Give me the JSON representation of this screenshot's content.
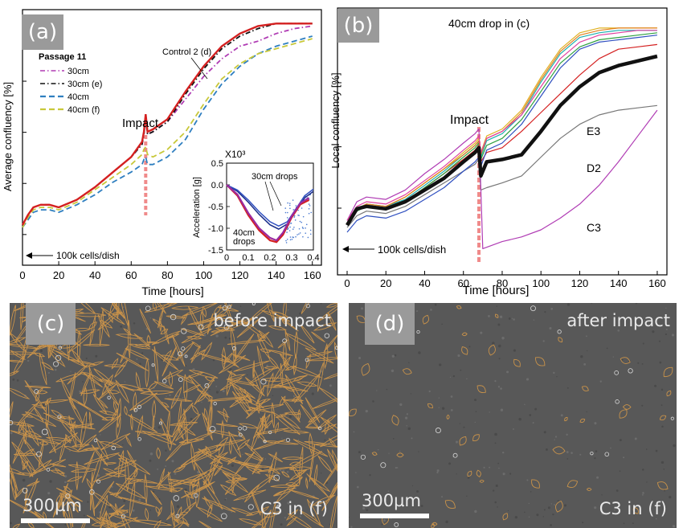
{
  "panels": {
    "a": {
      "tag": "(a)",
      "legend_title": "Passage 11",
      "control_label": "Control 2 (d)",
      "impact_label": "Impact",
      "start_label": "100k cells/dish",
      "inset": {
        "exp_label": "X10³",
        "ylabel": "Acceleration [g]",
        "label_30": "30cm drops",
        "label_40_line1": "40cm",
        "label_40_line2": "drops"
      }
    },
    "b": {
      "tag": "(b)",
      "title": "40cm drop in (c)",
      "impact_label": "Impact",
      "start_label": "100k cells/dish",
      "labels": {
        "e3": "E3",
        "d2": "D2",
        "c3": "C3"
      }
    },
    "c": {
      "tag": "(c)",
      "caption": "before impact",
      "scale": "300µm",
      "sample": "C3 in (f)"
    },
    "d": {
      "tag": "(d)",
      "caption": "after impact",
      "scale": "300µm",
      "sample": "C3 in (f)"
    }
  },
  "colors": {
    "red": "#d42020",
    "black": "#111111",
    "blue": "#2f7fc0",
    "yellow": "#c8c83a",
    "magenta": "#b03cb4",
    "impact": "#f08a8a",
    "outline": "#c8924a",
    "bg_micro": "#585858"
  },
  "chart_data": [
    {
      "id": "a",
      "type": "line",
      "xlabel": "Time [hours]",
      "ylabel": "Average confluency [%]",
      "xlim": [
        0,
        165
      ],
      "xticks": [
        0,
        20,
        40,
        60,
        80,
        100,
        120,
        140,
        160
      ],
      "impact_x": 68,
      "grid": false,
      "legend_position": "top-left",
      "series": [
        {
          "name": "30cm",
          "color": "#b03cb4",
          "style": "dashdot",
          "x": [
            0,
            3,
            6,
            10,
            15,
            20,
            30,
            40,
            50,
            60,
            66,
            67,
            68,
            69,
            72,
            80,
            90,
            100,
            110,
            120,
            130,
            140,
            150,
            160
          ],
          "y": [
            0.16,
            0.2,
            0.23,
            0.24,
            0.24,
            0.23,
            0.26,
            0.31,
            0.37,
            0.43,
            0.48,
            0.52,
            0.58,
            0.52,
            0.53,
            0.57,
            0.66,
            0.75,
            0.82,
            0.87,
            0.89,
            0.92,
            0.94,
            0.95
          ]
        },
        {
          "name": "30cm (e)",
          "color": "#111111",
          "style": "dashdot",
          "x": [
            0,
            3,
            6,
            10,
            15,
            20,
            30,
            40,
            50,
            60,
            66,
            67,
            68,
            69,
            72,
            80,
            90,
            100,
            110,
            120,
            130,
            140,
            150,
            160
          ],
          "y": [
            0.16,
            0.2,
            0.23,
            0.24,
            0.24,
            0.23,
            0.26,
            0.31,
            0.37,
            0.43,
            0.48,
            0.52,
            0.58,
            0.52,
            0.53,
            0.57,
            0.68,
            0.78,
            0.86,
            0.91,
            0.94,
            0.96,
            0.96,
            0.96
          ]
        },
        {
          "name": "40cm",
          "color": "#2f7fc0",
          "style": "dashed",
          "x": [
            0,
            3,
            6,
            10,
            15,
            20,
            30,
            40,
            50,
            60,
            66,
            67,
            68,
            69,
            72,
            80,
            90,
            100,
            110,
            120,
            130,
            140,
            150,
            160
          ],
          "y": [
            0.15,
            0.18,
            0.21,
            0.22,
            0.22,
            0.21,
            0.24,
            0.28,
            0.33,
            0.37,
            0.4,
            0.42,
            0.43,
            0.4,
            0.4,
            0.43,
            0.5,
            0.62,
            0.72,
            0.79,
            0.84,
            0.87,
            0.89,
            0.91
          ]
        },
        {
          "name": "40cm (f)",
          "color": "#c8c83a",
          "style": "dashed",
          "x": [
            0,
            3,
            6,
            10,
            15,
            20,
            30,
            40,
            50,
            60,
            66,
            67,
            68,
            69,
            72,
            80,
            90,
            100,
            110,
            120,
            130,
            140,
            150,
            160
          ],
          "y": [
            0.15,
            0.19,
            0.22,
            0.23,
            0.23,
            0.22,
            0.25,
            0.3,
            0.35,
            0.4,
            0.44,
            0.46,
            0.47,
            0.44,
            0.43,
            0.46,
            0.53,
            0.64,
            0.74,
            0.8,
            0.84,
            0.86,
            0.88,
            0.9
          ]
        },
        {
          "name": "Control 2 (d)",
          "color": "#d42020",
          "style": "solid",
          "x": [
            0,
            3,
            6,
            10,
            15,
            20,
            30,
            40,
            50,
            60,
            66,
            67,
            68,
            69,
            72,
            80,
            90,
            100,
            110,
            120,
            130,
            140,
            150,
            160
          ],
          "y": [
            0.16,
            0.2,
            0.23,
            0.24,
            0.24,
            0.23,
            0.26,
            0.31,
            0.37,
            0.43,
            0.49,
            0.53,
            0.6,
            0.53,
            0.54,
            0.58,
            0.69,
            0.79,
            0.87,
            0.92,
            0.95,
            0.96,
            0.96,
            0.96
          ]
        }
      ]
    },
    {
      "id": "a-inset",
      "type": "line",
      "ylabel": "Acceleration [g]",
      "xlim": [
        0,
        0.4
      ],
      "ylim": [
        -1.5,
        0.5
      ],
      "xticks": [
        "0",
        "0.1",
        "0.2",
        "0.3",
        "0.4"
      ],
      "yticks": [
        "0.5",
        "0.0",
        "-0.5",
        "-1.0",
        "-1.5"
      ],
      "series": [
        {
          "color": "#1a2e8a",
          "x": [
            0,
            0.05,
            0.1,
            0.15,
            0.2,
            0.24,
            0.28,
            0.32,
            0.36,
            0.4
          ],
          "y": [
            0.0,
            -0.15,
            -0.4,
            -0.68,
            -0.92,
            -1.02,
            -0.9,
            -0.6,
            -0.3,
            -0.15
          ]
        },
        {
          "color": "#3050c0",
          "x": [
            0,
            0.05,
            0.1,
            0.15,
            0.2,
            0.24,
            0.28,
            0.32,
            0.36,
            0.4
          ],
          "y": [
            0.0,
            -0.12,
            -0.35,
            -0.62,
            -0.85,
            -0.95,
            -0.85,
            -0.55,
            -0.25,
            -0.1
          ]
        },
        {
          "color": "#d42020",
          "x": [
            0,
            0.05,
            0.1,
            0.15,
            0.2,
            0.23,
            0.26,
            0.3,
            0.34,
            0.38
          ],
          "y": [
            0.0,
            -0.25,
            -0.7,
            -1.05,
            -1.28,
            -1.32,
            -1.15,
            -0.75,
            -0.45,
            -0.35
          ]
        },
        {
          "color": "#9a2aa0",
          "x": [
            0,
            0.05,
            0.1,
            0.15,
            0.2,
            0.23,
            0.26,
            0.3,
            0.34,
            0.38
          ],
          "y": [
            0.0,
            -0.22,
            -0.65,
            -1.0,
            -1.22,
            -1.28,
            -1.1,
            -0.72,
            -0.42,
            -0.3
          ]
        }
      ]
    },
    {
      "id": "b",
      "type": "line",
      "xlabel": "Time [hours]",
      "ylabel": "Local confluency [%]",
      "xlim": [
        0,
        165
      ],
      "xticks": [
        0,
        20,
        40,
        60,
        80,
        100,
        120,
        140,
        160
      ],
      "impact_x": 68,
      "series": [
        {
          "name": "",
          "color": "#111111",
          "bold": true,
          "x": [
            0,
            5,
            10,
            20,
            30,
            40,
            50,
            60,
            66,
            68,
            69,
            72,
            80,
            90,
            100,
            110,
            120,
            130,
            140,
            150,
            160
          ],
          "y": [
            0.15,
            0.22,
            0.23,
            0.22,
            0.25,
            0.3,
            0.35,
            0.42,
            0.46,
            0.48,
            0.36,
            0.42,
            0.43,
            0.45,
            0.55,
            0.66,
            0.74,
            0.8,
            0.83,
            0.85,
            0.87
          ]
        },
        {
          "name": "E3",
          "color": "#d42020",
          "x": [
            0,
            5,
            10,
            20,
            30,
            40,
            50,
            60,
            66,
            68,
            69,
            72,
            80,
            90,
            100,
            110,
            120,
            130,
            140,
            150,
            160
          ],
          "y": [
            0.16,
            0.22,
            0.23,
            0.22,
            0.25,
            0.31,
            0.37,
            0.43,
            0.47,
            0.49,
            0.42,
            0.46,
            0.48,
            0.55,
            0.63,
            0.71,
            0.79,
            0.86,
            0.9,
            0.91,
            0.92
          ]
        },
        {
          "name": "D2",
          "color": "#777777",
          "x": [
            0,
            5,
            10,
            20,
            30,
            40,
            50,
            60,
            66,
            68,
            69,
            72,
            80,
            90,
            100,
            110,
            120,
            130,
            140,
            150,
            160
          ],
          "y": [
            0.14,
            0.19,
            0.21,
            0.2,
            0.23,
            0.28,
            0.33,
            0.38,
            0.41,
            0.43,
            0.3,
            0.31,
            0.33,
            0.36,
            0.44,
            0.52,
            0.58,
            0.62,
            0.64,
            0.65,
            0.66
          ]
        },
        {
          "name": "C3",
          "color": "#b03cb4",
          "x": [
            0,
            5,
            10,
            20,
            30,
            40,
            50,
            60,
            66,
            68,
            70,
            80,
            90,
            100,
            110,
            120,
            130,
            140,
            150,
            160
          ],
          "y": [
            0.17,
            0.25,
            0.27,
            0.26,
            0.3,
            0.37,
            0.43,
            0.5,
            0.54,
            0.56,
            0.05,
            0.08,
            0.1,
            0.13,
            0.18,
            0.24,
            0.32,
            0.42,
            0.53,
            0.64
          ]
        },
        {
          "name": "",
          "color": "#e0b020",
          "x": [
            0,
            5,
            10,
            20,
            30,
            40,
            50,
            60,
            66,
            68,
            69,
            72,
            80,
            90,
            100,
            110,
            120,
            130,
            140,
            150,
            160
          ],
          "y": [
            0.16,
            0.22,
            0.24,
            0.23,
            0.27,
            0.33,
            0.39,
            0.46,
            0.5,
            0.52,
            0.46,
            0.53,
            0.56,
            0.64,
            0.78,
            0.9,
            0.97,
            0.99,
            0.99,
            0.99,
            0.99
          ]
        },
        {
          "name": "",
          "color": "#20b0b0",
          "x": [
            0,
            5,
            10,
            20,
            30,
            40,
            50,
            60,
            66,
            68,
            69,
            72,
            80,
            90,
            100,
            110,
            120,
            130,
            140,
            150,
            160
          ],
          "y": [
            0.16,
            0.22,
            0.24,
            0.23,
            0.26,
            0.32,
            0.38,
            0.45,
            0.49,
            0.51,
            0.44,
            0.51,
            0.54,
            0.62,
            0.76,
            0.88,
            0.95,
            0.97,
            0.98,
            0.98,
            0.98
          ]
        },
        {
          "name": "",
          "color": "#30a040",
          "x": [
            0,
            5,
            10,
            20,
            30,
            40,
            50,
            60,
            66,
            68,
            69,
            72,
            80,
            90,
            100,
            110,
            120,
            130,
            140,
            150,
            160
          ],
          "y": [
            0.15,
            0.21,
            0.23,
            0.22,
            0.25,
            0.31,
            0.37,
            0.44,
            0.48,
            0.5,
            0.43,
            0.49,
            0.52,
            0.6,
            0.72,
            0.84,
            0.91,
            0.94,
            0.95,
            0.96,
            0.97
          ]
        },
        {
          "name": "",
          "color": "#3050c0",
          "x": [
            0,
            5,
            10,
            20,
            30,
            40,
            50,
            60,
            66,
            68,
            69,
            72,
            80,
            90,
            100,
            110,
            120,
            130,
            140,
            150,
            160
          ],
          "y": [
            0.12,
            0.17,
            0.19,
            0.18,
            0.21,
            0.26,
            0.31,
            0.38,
            0.42,
            0.44,
            0.4,
            0.47,
            0.5,
            0.58,
            0.7,
            0.82,
            0.9,
            0.93,
            0.94,
            0.95,
            0.96
          ]
        },
        {
          "name": "",
          "color": "#e08020",
          "x": [
            0,
            5,
            10,
            20,
            30,
            40,
            50,
            60,
            66,
            68,
            69,
            72,
            80,
            90,
            100,
            110,
            120,
            130,
            140,
            150,
            160
          ],
          "y": [
            0.16,
            0.22,
            0.24,
            0.23,
            0.27,
            0.33,
            0.39,
            0.45,
            0.49,
            0.51,
            0.45,
            0.52,
            0.55,
            0.63,
            0.77,
            0.89,
            0.96,
            0.98,
            0.99,
            0.99,
            0.99
          ]
        },
        {
          "name": "",
          "color": "#e040a0",
          "x": [
            0,
            5,
            10,
            20,
            30,
            40,
            50,
            60,
            66,
            68,
            69,
            72,
            80,
            90,
            100,
            110,
            120,
            130,
            140,
            150,
            160
          ],
          "y": [
            0.17,
            0.23,
            0.25,
            0.24,
            0.28,
            0.34,
            0.4,
            0.47,
            0.51,
            0.53,
            0.46,
            0.52,
            0.55,
            0.62,
            0.74,
            0.86,
            0.93,
            0.96,
            0.97,
            0.98,
            0.98
          ]
        }
      ]
    }
  ]
}
